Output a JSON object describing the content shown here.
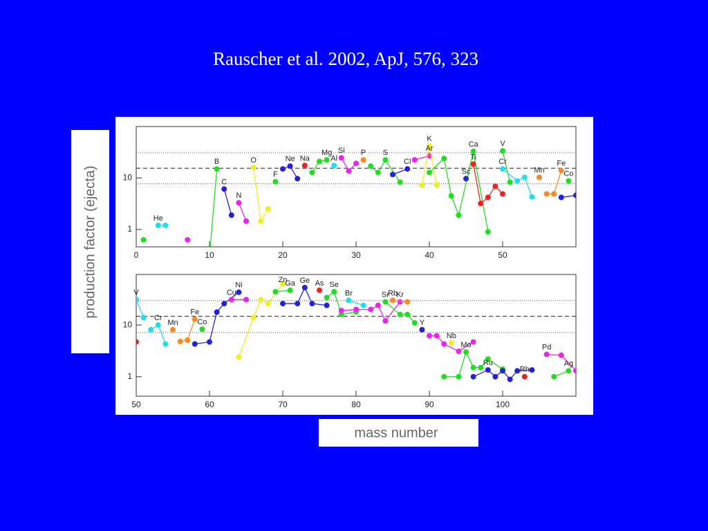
{
  "title": "Rauscher et al. 2002, ApJ, 576, 323",
  "ylabel": "production factor (ejecta)",
  "xlabel": "mass number",
  "chart_data": [
    {
      "type": "line",
      "log_y": true,
      "xlim": [
        0,
        60
      ],
      "ylim": [
        0.46,
        100
      ],
      "xticks": [
        0,
        10,
        20,
        30,
        40,
        50
      ],
      "yticks": [
        1,
        10
      ],
      "dashed_lines": [
        15.5
      ],
      "dotted_lines": [
        31,
        7.75
      ],
      "series": [
        {
          "color": "#22dd22",
          "x": [
            1
          ],
          "values": [
            0.63
          ]
        },
        {
          "name": "He",
          "color": "#22ddee",
          "x": [
            3,
            4
          ],
          "values": [
            1.2,
            1.2
          ]
        },
        {
          "color": "#ee22ee",
          "x": [
            7
          ],
          "values": [
            0.63
          ]
        },
        {
          "name": "B",
          "color": "#22dd22",
          "x": [
            10,
            11
          ],
          "values": [
            0.3,
            15
          ]
        },
        {
          "name": "C",
          "color": "#2222dd",
          "x": [
            12,
            13
          ],
          "values": [
            6.1,
            1.9
          ]
        },
        {
          "name": "N",
          "color": "#ee22ee",
          "x": [
            14,
            15
          ],
          "values": [
            3.3,
            1.45
          ]
        },
        {
          "name": "O",
          "color": "#eeee22",
          "x": [
            16,
            17,
            18
          ],
          "values": [
            16,
            1.45,
            2.5
          ]
        },
        {
          "name": "F",
          "color": "#22dd22",
          "x": [
            19
          ],
          "values": [
            8.5
          ]
        },
        {
          "name": "Ne",
          "color": "#2222dd",
          "x": [
            20,
            21,
            22
          ],
          "values": [
            15,
            17,
            9.7
          ]
        },
        {
          "name": "Na",
          "color": "#ee2222",
          "x": [
            23
          ],
          "values": [
            17.5
          ]
        },
        {
          "name": "Mg",
          "color": "#22dd22",
          "x": [
            24,
            25,
            26
          ],
          "values": [
            12.8,
            21,
            22.5
          ]
        },
        {
          "name": "Al",
          "color": "#22ddee",
          "x": [
            27
          ],
          "values": [
            17.5
          ]
        },
        {
          "name": "Si",
          "color": "#ee22ee",
          "x": [
            28,
            29,
            30
          ],
          "values": [
            24.6,
            13.7,
            19.2
          ]
        },
        {
          "name": "P",
          "color": "#ff8822",
          "x": [
            31
          ],
          "values": [
            22.5
          ]
        },
        {
          "name": "S",
          "color": "#22dd22",
          "x": [
            32,
            33,
            34,
            36
          ],
          "values": [
            17,
            12.8,
            22.5,
            8.3
          ]
        },
        {
          "name": "Cl",
          "color": "#2222dd",
          "x": [
            35,
            37
          ],
          "values": [
            11.7,
            15
          ]
        },
        {
          "name": "Ar",
          "color": "#ee22ee",
          "x": [
            38,
            40
          ],
          "values": [
            22.5,
            27
          ]
        },
        {
          "name": "K",
          "color": "#eeee22",
          "x": [
            39,
            40,
            41
          ],
          "values": [
            7.3,
            42,
            7.3
          ]
        },
        {
          "name": "Ca",
          "color": "#22dd22",
          "x": [
            40,
            42,
            43,
            44,
            46,
            48
          ],
          "values": [
            12.8,
            24,
            4.5,
            1.9,
            33,
            0.9
          ]
        },
        {
          "name": "Sc",
          "color": "#2222dd",
          "x": [
            45
          ],
          "values": [
            9.7
          ]
        },
        {
          "name": "Ti",
          "color": "#ee2222",
          "x": [
            46,
            47,
            48,
            49,
            50
          ],
          "values": [
            18.6,
            3.2,
            4.2,
            6.9,
            4.9
          ]
        },
        {
          "name": "V",
          "color": "#22dd22",
          "x": [
            50,
            51
          ],
          "values": [
            33.6,
            8.3
          ]
        },
        {
          "name": "Cr",
          "color": "#22ddee",
          "x": [
            50,
            52,
            53,
            54
          ],
          "values": [
            15,
            8.8,
            10.3,
            4.3
          ]
        },
        {
          "name": "Mn",
          "color": "#ff8822",
          "x": [
            55
          ],
          "values": [
            10.3
          ]
        },
        {
          "name": "Fe",
          "color": "#ff8822",
          "x": [
            56,
            57,
            58
          ],
          "values": [
            4.9,
            4.9,
            14
          ]
        },
        {
          "name": "Co",
          "color": "#22dd22",
          "x": [
            59
          ],
          "values": [
            8.8
          ]
        },
        {
          "color": "#2222dd",
          "x": [
            58,
            60
          ],
          "values": [
            4.2,
            4.6
          ]
        }
      ]
    },
    {
      "type": "line",
      "log_y": true,
      "xlim": [
        50,
        110
      ],
      "ylim": [
        0.42,
        95
      ],
      "xticks": [
        50,
        60,
        70,
        80,
        90,
        100
      ],
      "yticks": [
        1,
        10
      ],
      "dashed_lines": [
        14.8
      ],
      "dotted_lines": [
        29.7,
        7.2
      ],
      "series": [
        {
          "color": "#ee2222",
          "x": [
            50
          ],
          "values": [
            4.7
          ]
        },
        {
          "name": "V",
          "color": "#22ddee",
          "x": [
            50,
            51
          ],
          "values": [
            31,
            14
          ]
        },
        {
          "name": "Cr",
          "color": "#22ddee",
          "x": [
            52,
            53,
            54
          ],
          "values": [
            8.1,
            10,
            4.3
          ]
        },
        {
          "name": "Mn",
          "color": "#ff8822",
          "x": [
            55
          ],
          "values": [
            8.1
          ]
        },
        {
          "name": "Fe",
          "color": "#ff8822",
          "x": [
            56,
            57,
            58
          ],
          "values": [
            4.8,
            5.1,
            13
          ]
        },
        {
          "name": "Co",
          "color": "#22dd22",
          "x": [
            59
          ],
          "values": [
            8.3
          ]
        },
        {
          "name": "Ni",
          "color": "#2222dd",
          "x": [
            58,
            60,
            61,
            62,
            64
          ],
          "values": [
            4.3,
            4.7,
            17.8,
            26,
            43
          ]
        },
        {
          "name": "Cu",
          "color": "#ee22ee",
          "x": [
            63,
            65
          ],
          "values": [
            31,
            31
          ]
        },
        {
          "name": "Zn",
          "color": "#eeee22",
          "x": [
            64,
            66,
            67,
            68,
            70
          ],
          "values": [
            2.4,
            14,
            31,
            26,
            63
          ]
        },
        {
          "name": "Ga",
          "color": "#22dd22",
          "x": [
            69,
            71
          ],
          "values": [
            44,
            47
          ]
        },
        {
          "name": "Ge",
          "color": "#2222dd",
          "x": [
            70,
            72,
            73,
            74,
            76
          ],
          "values": [
            26,
            26,
            53,
            26,
            24
          ]
        },
        {
          "name": "As",
          "color": "#ee2222",
          "x": [
            75
          ],
          "values": [
            47
          ]
        },
        {
          "name": "Se",
          "color": "#22dd22",
          "x": [
            76,
            77,
            78,
            80
          ],
          "values": [
            34,
            44,
            16,
            18
          ]
        },
        {
          "name": "Br",
          "color": "#22ddee",
          "x": [
            79,
            81
          ],
          "values": [
            30,
            24
          ]
        },
        {
          "name": "Kr",
          "color": "#ee22ee",
          "x": [
            78,
            80,
            82,
            83,
            84,
            86
          ],
          "values": [
            19,
            20,
            20,
            24,
            12,
            28
          ]
        },
        {
          "name": "Rb",
          "color": "#ff8822",
          "x": [
            85,
            87
          ],
          "values": [
            30,
            28
          ]
        },
        {
          "name": "Sr",
          "color": "#22dd22",
          "x": [
            84,
            86,
            87,
            88
          ],
          "values": [
            28,
            16,
            16,
            11
          ]
        },
        {
          "name": "Y",
          "color": "#2222dd",
          "x": [
            89
          ],
          "values": [
            8.1
          ]
        },
        {
          "color": "#ee22ee",
          "x": [
            90,
            91,
            92,
            94,
            96
          ],
          "values": [
            6.2,
            6.2,
            4.3,
            3.1,
            4.7
          ]
        },
        {
          "name": "Nb",
          "color": "#eeee22",
          "x": [
            93
          ],
          "values": [
            4.5
          ]
        },
        {
          "name": "Mo",
          "color": "#22dd22",
          "x": [
            92,
            94,
            95,
            96,
            97,
            98,
            100
          ],
          "values": [
            1.0,
            1.0,
            3,
            1.5,
            1.5,
            2.2,
            1.4
          ]
        },
        {
          "name": "Ru",
          "color": "#2222dd",
          "x": [
            96,
            98,
            99,
            100,
            101,
            102,
            104
          ],
          "values": [
            1.0,
            1.35,
            1.0,
            1.3,
            0.89,
            1.3,
            1.35
          ]
        },
        {
          "name": "Rh",
          "color": "#ee2222",
          "x": [
            103
          ],
          "values": [
            1.0
          ]
        },
        {
          "name": "Pd",
          "color": "#ee22ee",
          "x": [
            106,
            108,
            110
          ],
          "values": [
            2.7,
            2.6,
            1.3
          ]
        },
        {
          "name": "Ag",
          "color": "#22dd22",
          "x": [
            107,
            109
          ],
          "values": [
            1.0,
            1.3
          ]
        }
      ]
    }
  ]
}
